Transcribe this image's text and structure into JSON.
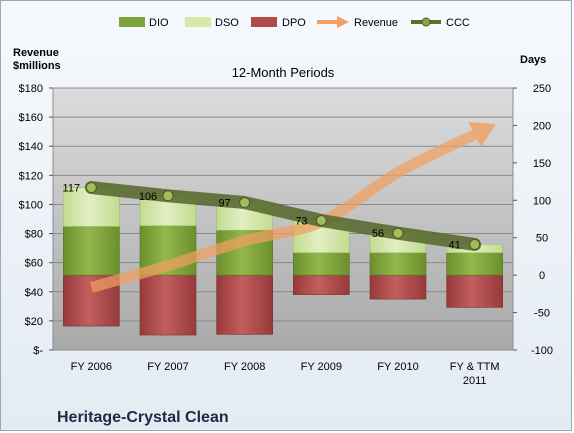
{
  "chart_data": {
    "type": "bar",
    "subtitle": "12-Month Periods",
    "footer_title": "Heritage-Crystal Clean",
    "left_axis_title": [
      "Revenue",
      "$millions"
    ],
    "right_axis_title": "Days",
    "categories": [
      "FY 2006",
      "FY 2007",
      "FY 2008",
      "FY 2009",
      "FY 2010",
      "FY & TTM 2011"
    ],
    "left_axis": {
      "range": [
        0,
        180
      ],
      "ticks": [
        "$-",
        "$20",
        "$40",
        "$60",
        "$80",
        "$100",
        "$120",
        "$140",
        "$160",
        "$180"
      ]
    },
    "right_axis": {
      "range": [
        -100,
        250
      ],
      "ticks": [
        "-100",
        "-50",
        "0",
        "50",
        "100",
        "150",
        "200",
        "250"
      ]
    },
    "series": [
      {
        "name": "DIO",
        "kind": "bar",
        "axis": "days",
        "color": "#7ea23c",
        "values": [
          65,
          66,
          60,
          30,
          30,
          30
        ]
      },
      {
        "name": "DSO",
        "kind": "bar",
        "axis": "days",
        "color": "#cfe4a0",
        "values": [
          52,
          40,
          37,
          43,
          26,
          11
        ]
      },
      {
        "name": "DPO",
        "kind": "bar",
        "axis": "days",
        "color": "#b04a4a",
        "values": [
          -68,
          -80,
          -79,
          -26,
          -32,
          -43
        ]
      },
      {
        "name": "Revenue",
        "kind": "arrow",
        "axis": "revenue",
        "color": "#f0a060",
        "values": [
          43,
          58,
          75,
          88,
          122,
          148
        ]
      },
      {
        "name": "CCC",
        "kind": "line",
        "axis": "days",
        "color": "#5e6e2c",
        "values": [
          117,
          106,
          97,
          73,
          56,
          41
        ]
      }
    ]
  }
}
